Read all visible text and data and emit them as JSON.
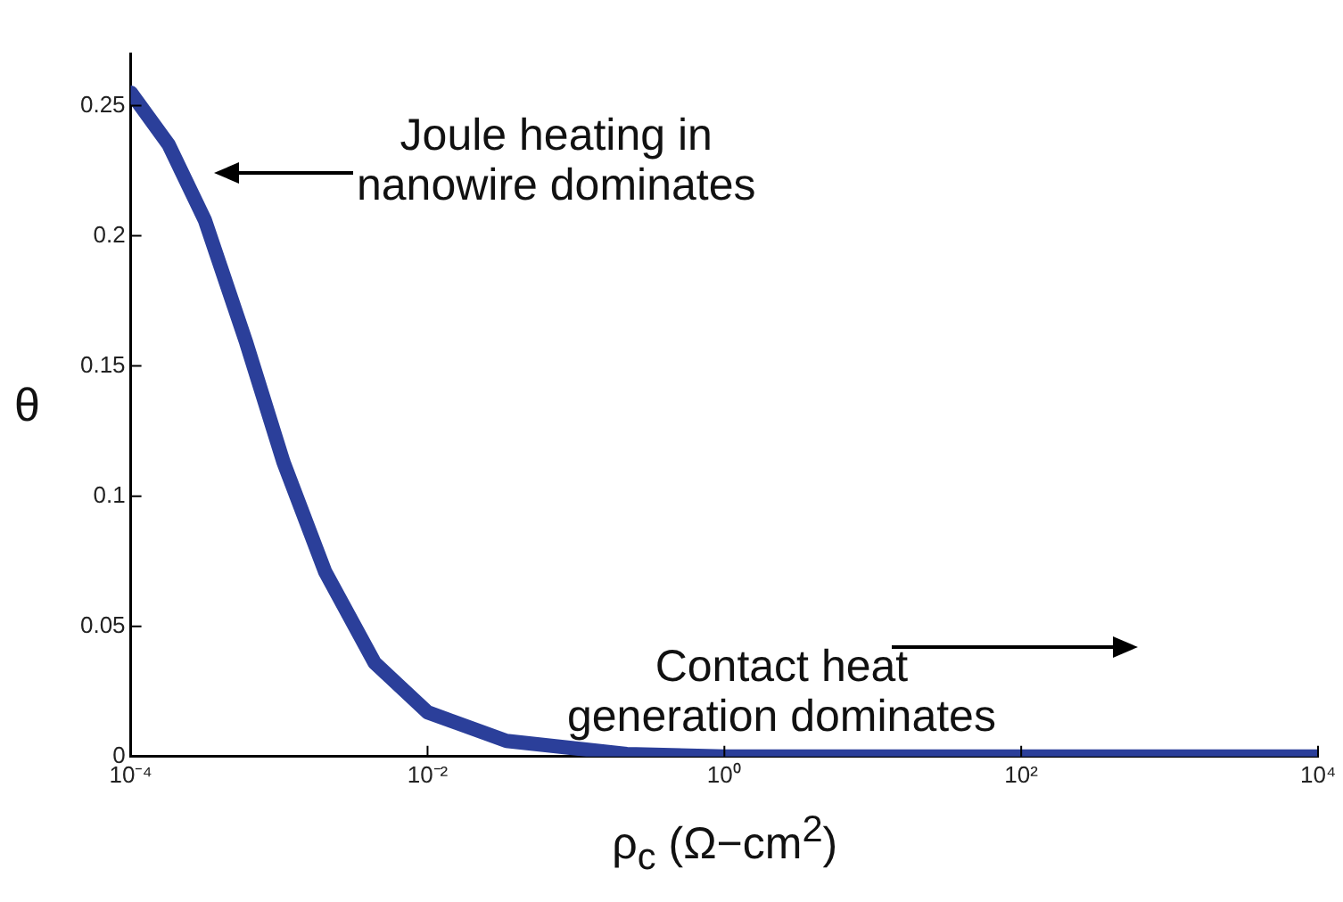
{
  "chart_data": {
    "type": "line",
    "xlabel": "ρ$_{c}$ (Ω−cm$^{2}$)",
    "ylabel": "θ",
    "log": "x",
    "x": [
      0.0001,
      0.00018,
      0.000316,
      0.0006,
      0.00107,
      0.00204,
      0.0044,
      0.01,
      0.034,
      0.22,
      1,
      100,
      10000
    ],
    "series": [
      {
        "color": "#2b3f9a",
        "values": [
          0.255,
          0.235,
          0.206,
          0.159,
          0.113,
          0.071,
          0.036,
          0.017,
          0.006,
          0.001,
          0,
          0,
          0
        ]
      }
    ],
    "xlim": [
      0.0001,
      10000
    ],
    "ylim": [
      0,
      0.27
    ],
    "xticks": [
      {
        "value": 0.0001,
        "label": "10⁻⁴"
      },
      {
        "value": 0.01,
        "label": "10⁻²"
      },
      {
        "value": 1,
        "label": "10⁰"
      },
      {
        "value": 100,
        "label": "10²"
      },
      {
        "value": 10000,
        "label": "10⁴"
      }
    ],
    "yticks": [
      0,
      0.05,
      0.1,
      0.15,
      0.2,
      0.25
    ],
    "grid": false,
    "legend": false,
    "marker": "none",
    "line_style": "solid",
    "annotations": [
      "Joule heating in\nnanowire dominates",
      "Contact heat\ngeneration dominates"
    ]
  }
}
